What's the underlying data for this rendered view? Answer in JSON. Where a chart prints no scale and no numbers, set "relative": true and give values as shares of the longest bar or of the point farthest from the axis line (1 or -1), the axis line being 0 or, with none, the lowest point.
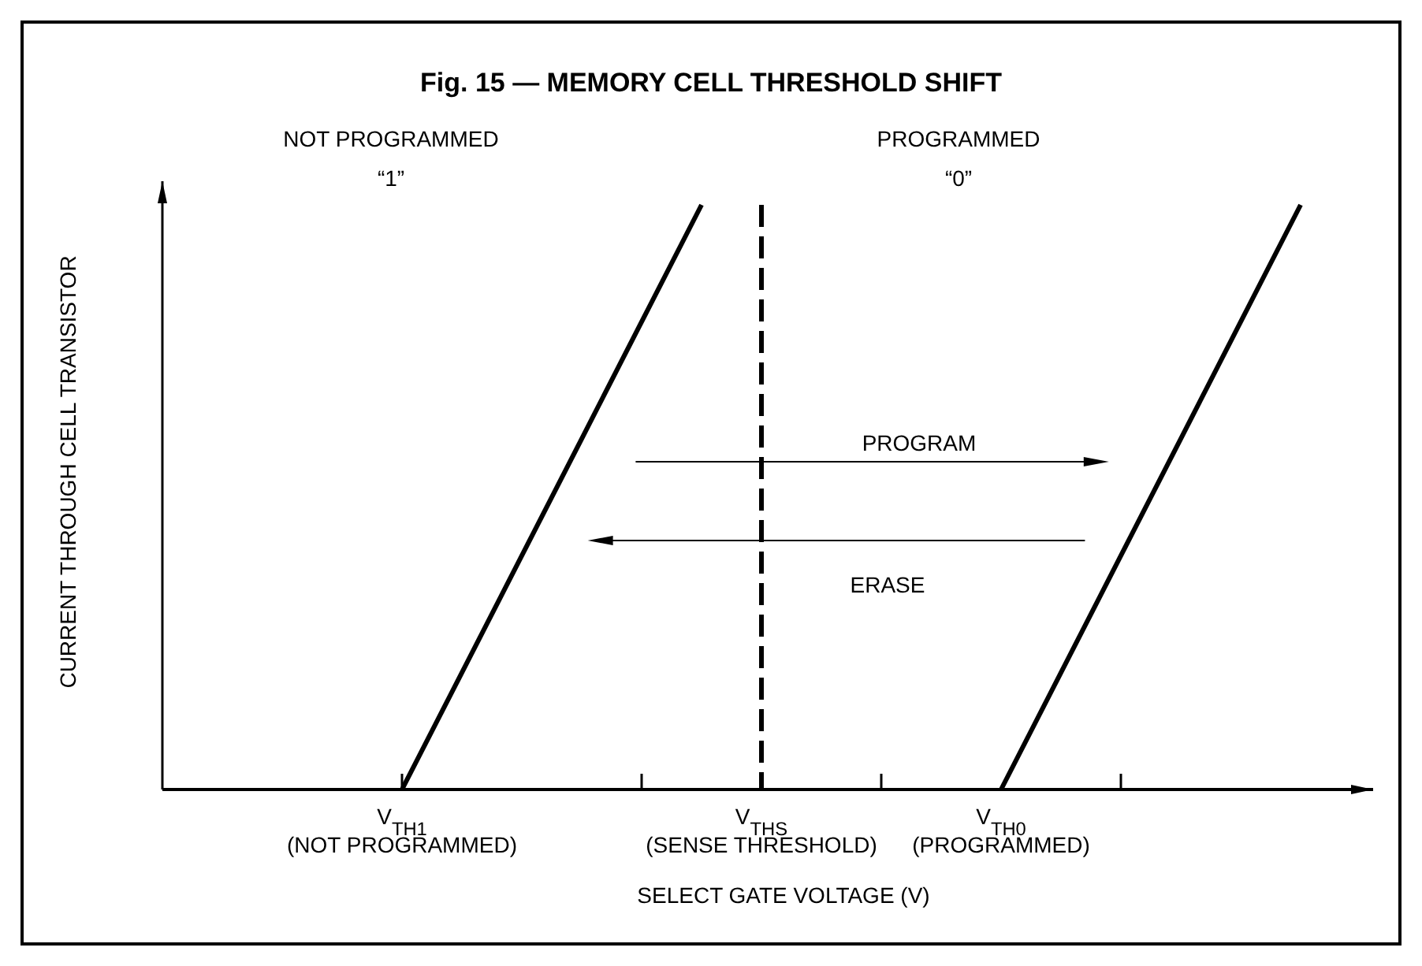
{
  "chart_data": {
    "type": "line",
    "title": "Fig. 15 — MEMORY CELL THRESHOLD SHIFT",
    "xlabel": "SELECT GATE VOLTAGE (V)",
    "ylabel": "CURRENT THROUGH CELL TRANSISTOR",
    "relative": true,
    "line_style": "solid",
    "categories": [
      null,
      null,
      null,
      null,
      "V$_{TH1}$\n(NOT PROGRAMMED)",
      null,
      null,
      null,
      null,
      null,
      "V$_{THS}$\n(SENSE THRESHOLD)",
      null,
      null,
      null,
      "V$_{TH0}$\n(PROGRAMMED)",
      null,
      null,
      null,
      null,
      null,
      null
    ],
    "series": [
      {
        "color": "#000000",
        "values": [
          null,
          null,
          null,
          null,
          0,
          0.2,
          0.4,
          0.6,
          0.8,
          1,
          null,
          null,
          null,
          null,
          null,
          null,
          null,
          null,
          null,
          null,
          null
        ]
      },
      {
        "color": "#000000",
        "values": [
          null,
          null,
          null,
          null,
          null,
          null,
          null,
          null,
          null,
          null,
          null,
          null,
          null,
          null,
          0,
          0.2,
          0.4,
          0.6,
          0.8,
          1,
          null
        ]
      }
    ],
    "ref_lines": [
      {
        "axis": "x",
        "value": "V$_{THS}$\n(SENSE THRESHOLD)",
        "label": null,
        "color": "#000000",
        "line_style": "dashed"
      }
    ],
    "annotations": [
      "NOT PROGRAMMED\n“1”",
      "PROGRAMMED\n“0”",
      "PROGRAM",
      "ERASE"
    ]
  }
}
